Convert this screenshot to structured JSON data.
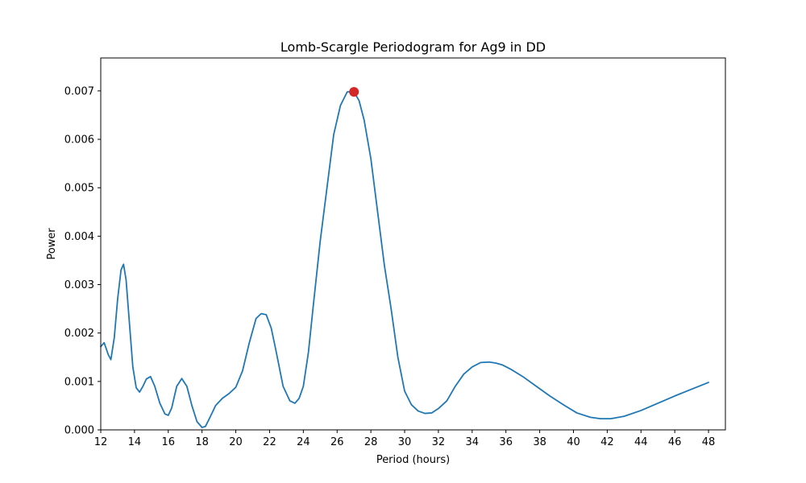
{
  "chart_data": {
    "type": "line",
    "title": "Lomb-Scargle Periodogram for Ag9 in DD",
    "xlabel": "Period (hours)",
    "ylabel": "Power",
    "xlim": [
      12,
      49
    ],
    "ylim": [
      0,
      0.00768
    ],
    "xticks": [
      12,
      14,
      16,
      18,
      20,
      22,
      24,
      26,
      28,
      30,
      32,
      34,
      36,
      38,
      40,
      42,
      44,
      46,
      48
    ],
    "yticks": [
      0,
      0.001,
      0.002,
      0.003,
      0.004,
      0.005,
      0.006,
      0.007
    ],
    "ytick_labels": [
      "0.000",
      "0.001",
      "0.002",
      "0.003",
      "0.004",
      "0.005",
      "0.006",
      "0.007"
    ],
    "grid": false,
    "series": [
      {
        "color": "#1f77b4",
        "x": [
          12.0,
          12.2,
          12.45,
          12.6,
          12.8,
          13.0,
          13.2,
          13.35,
          13.5,
          13.7,
          13.9,
          14.1,
          14.3,
          14.5,
          14.7,
          14.95,
          15.2,
          15.5,
          15.8,
          16.0,
          16.2,
          16.5,
          16.8,
          17.1,
          17.4,
          17.7,
          18.0,
          18.2,
          18.5,
          18.8,
          19.2,
          19.6,
          20.0,
          20.4,
          20.8,
          21.2,
          21.5,
          21.8,
          22.1,
          22.4,
          22.8,
          23.2,
          23.5,
          23.75,
          24.0,
          24.3,
          24.6,
          25.0,
          25.4,
          25.8,
          26.2,
          26.6,
          27.0,
          27.3,
          27.6,
          28.0,
          28.4,
          28.8,
          29.2,
          29.6,
          30.0,
          30.4,
          30.8,
          31.2,
          31.6,
          32.0,
          32.5,
          33.0,
          33.5,
          34.0,
          34.5,
          35.0,
          35.4,
          35.8,
          36.3,
          37.0,
          37.8,
          38.6,
          39.4,
          40.2,
          41.0,
          41.6,
          42.2,
          43.0,
          44.0,
          45.0,
          46.0,
          47.0,
          48.0
        ],
        "y": [
          0.00172,
          0.0018,
          0.00155,
          0.00145,
          0.0019,
          0.0027,
          0.0033,
          0.00342,
          0.0031,
          0.0022,
          0.0013,
          0.00087,
          0.00078,
          0.0009,
          0.00105,
          0.0011,
          0.0009,
          0.00055,
          0.00033,
          0.0003,
          0.00045,
          0.0009,
          0.00106,
          0.0009,
          0.0005,
          0.00017,
          5e-05,
          7e-05,
          0.00028,
          0.0005,
          0.00065,
          0.00075,
          0.00088,
          0.00122,
          0.0018,
          0.0023,
          0.0024,
          0.00238,
          0.0021,
          0.0016,
          0.0009,
          0.0006,
          0.00055,
          0.00065,
          0.0009,
          0.0016,
          0.0026,
          0.0039,
          0.005,
          0.0061,
          0.0067,
          0.00698,
          0.00698,
          0.0068,
          0.0064,
          0.0056,
          0.0045,
          0.0034,
          0.0025,
          0.0015,
          0.0008,
          0.00052,
          0.00039,
          0.00034,
          0.00035,
          0.00044,
          0.0006,
          0.0009,
          0.00115,
          0.0013,
          0.00139,
          0.0014,
          0.00138,
          0.00134,
          0.00125,
          0.0011,
          0.0009,
          0.0007,
          0.00052,
          0.00035,
          0.00026,
          0.00023,
          0.00023,
          0.00028,
          0.0004,
          0.00055,
          0.0007,
          0.00084,
          0.00098
        ]
      }
    ],
    "peak": {
      "x": 27.0,
      "y": 0.00698,
      "color": "#d62728"
    }
  }
}
